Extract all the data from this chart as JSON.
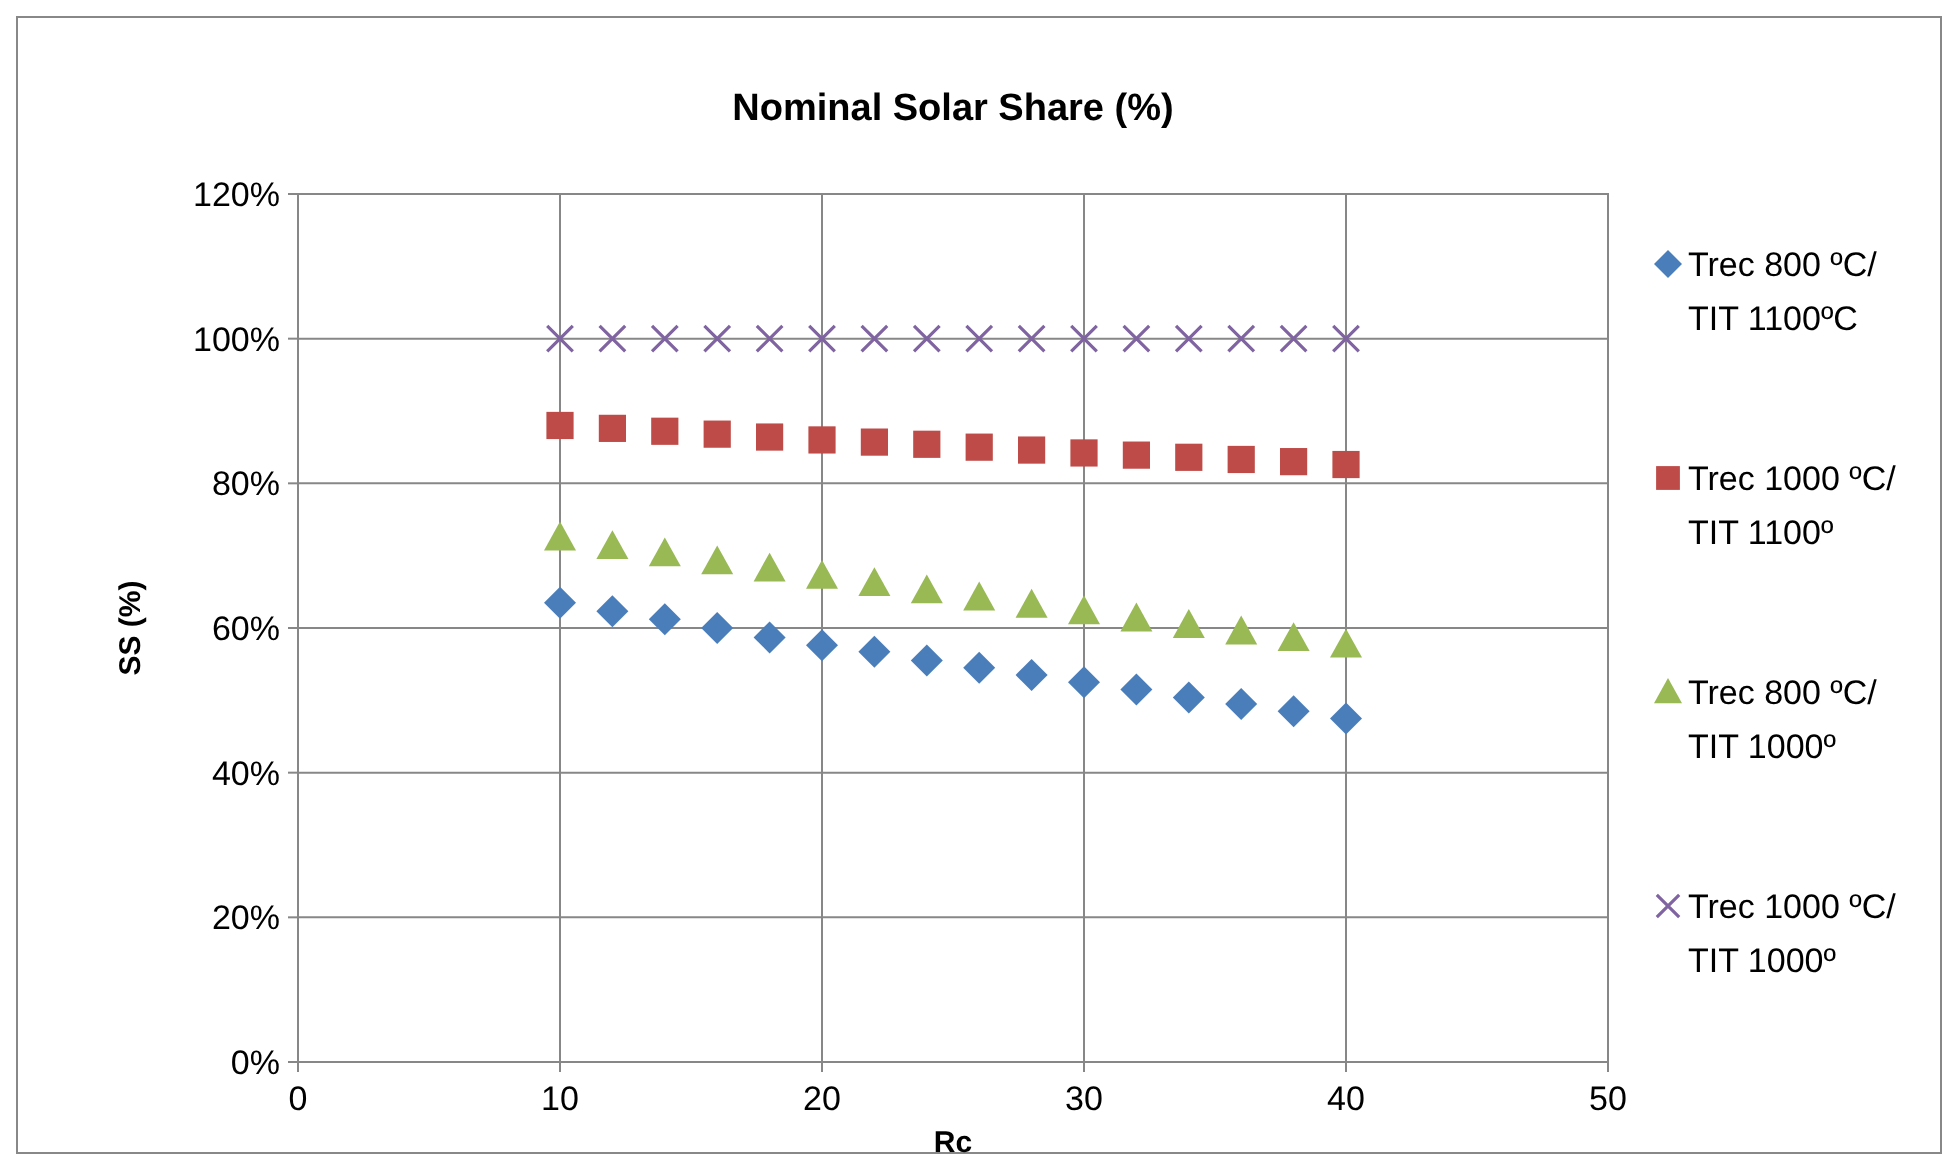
{
  "chart_data": {
    "type": "scatter",
    "title": "Nominal Solar Share (%)",
    "xlabel": "Rc",
    "ylabel": "SS (%)",
    "x": [
      10,
      12,
      14,
      16,
      18,
      20,
      22,
      24,
      26,
      28,
      30,
      32,
      34,
      36,
      38,
      40
    ],
    "series": [
      {
        "name": "Trec 800 ºC/ TIT 1100ºC",
        "color": "#4a7ebb",
        "marker": "diamond",
        "values": [
          63.5,
          62.3,
          61.2,
          60,
          58.7,
          57.6,
          56.7,
          55.5,
          54.5,
          53.5,
          52.5,
          51.5,
          50.4,
          49.5,
          48.5,
          47.5
        ]
      },
      {
        "name": "Trec 1000 ºC/ TIT 1100º",
        "color": "#be4b48",
        "marker": "square",
        "values": [
          88,
          87.6,
          87.2,
          86.8,
          86.4,
          86,
          85.7,
          85.4,
          85,
          84.6,
          84.2,
          83.9,
          83.6,
          83.3,
          83,
          82.6
        ]
      },
      {
        "name": "Trec 800 ºC/ TIT 1000º",
        "color": "#98b954",
        "marker": "triangle",
        "values": [
          72.5,
          71.3,
          70.3,
          69.2,
          68.2,
          67.2,
          66.2,
          65.2,
          64.2,
          63.2,
          62.3,
          61.3,
          60.4,
          59.5,
          58.6,
          57.7
        ]
      },
      {
        "name": "Trec 1000 ºC/ TIT 1000º",
        "color": "#8064a2",
        "marker": "cross",
        "values": [
          100,
          100,
          100,
          100,
          100,
          100,
          100,
          100,
          100,
          100,
          100,
          100,
          100,
          100,
          100,
          100
        ]
      }
    ],
    "xlim": [
      0,
      50
    ],
    "xticks": [
      0,
      10,
      20,
      30,
      40,
      50
    ],
    "ylim": [
      0,
      120
    ],
    "yticks": [
      {
        "value": 0,
        "label": "0%"
      },
      {
        "value": 20,
        "label": "20%"
      },
      {
        "value": 40,
        "label": "40%"
      },
      {
        "value": 60,
        "label": "60%"
      },
      {
        "value": 80,
        "label": "80%"
      },
      {
        "value": 100,
        "label": "100%"
      },
      {
        "value": 120,
        "label": "120%"
      }
    ],
    "grid": true,
    "legend": "right"
  }
}
